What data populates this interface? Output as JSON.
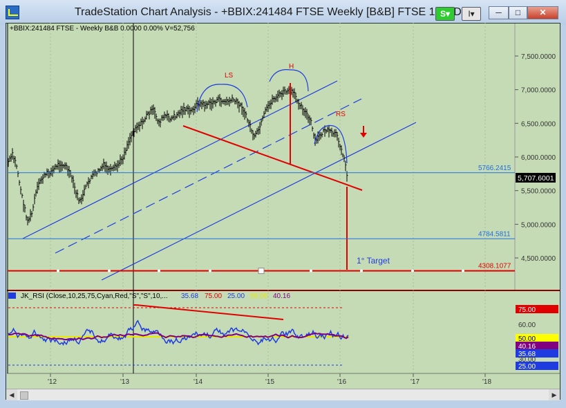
{
  "window": {
    "title": "TradeStation Chart Analysis - +BBIX:241484 FTSE Weekly [B&B] FTSE 100 IDX",
    "s_button": "S",
    "s_dropdown": "▾",
    "i_button": "I",
    "i_dropdown": "▾",
    "minimize": "─",
    "maximize": "□",
    "close": "✕"
  },
  "price_panel": {
    "header": "+BBIX:241484 FTSE - Weekly  B&B  0.0000  0.00%  V=52,756",
    "yticks": [
      "7,500.0000",
      "7,000.0000",
      "6,500.0000",
      "6,000.0000",
      "5,500.0000",
      "5,000.0000",
      "4,500.0000"
    ],
    "ytick_values": [
      7500,
      7000,
      6500,
      6000,
      5500,
      5000,
      4500
    ],
    "levels": [
      {
        "label": "5766.2415",
        "value": 5766.2415,
        "color": "#1e6ee0"
      },
      {
        "label": "4784.5811",
        "value": 4784.5811,
        "color": "#1e6ee0"
      },
      {
        "label": "4308.1077",
        "value": 4308.1077,
        "color": "#e00000"
      }
    ],
    "last_price": "5,707.6001",
    "last_price_value": 5707.6001,
    "annotations": {
      "ls": "LS",
      "h": "H",
      "rs": "RS",
      "target": "1° Target"
    },
    "colors": {
      "bg": "#c5dbb5",
      "bars": "#000000",
      "channel": "#1e3ce0",
      "neckline": "#e00000"
    }
  },
  "rsi_panel": {
    "header": "JK_RSI (Close,10,25,75,Cyan,Red,\"S\",\"S\",10,...",
    "header_icon": "indicator-icon",
    "values": [
      {
        "text": "35.68",
        "color": "#1e3ce0"
      },
      {
        "text": "75.00",
        "color": "#e00000"
      },
      {
        "text": "25.00",
        "color": "#1e3ce0"
      },
      {
        "text": "50.00",
        "color": "#e8e800"
      },
      {
        "text": "40.16",
        "color": "#800080"
      }
    ],
    "right_labels": [
      {
        "text": "75.00",
        "bg": "#e00000",
        "fg": "#ffffff"
      },
      {
        "text": "60.00",
        "bg": "",
        "fg": "#333333"
      },
      {
        "text": "50.00",
        "bg": "#ffff00",
        "fg": "#000000"
      },
      {
        "text": "40.16",
        "bg": "#800080",
        "fg": "#ffffff"
      },
      {
        "text": "35.68",
        "bg": "#1e3ce0",
        "fg": "#ffffff"
      },
      {
        "text": "30.00",
        "bg": "",
        "fg": "#333333"
      },
      {
        "text": "25.00",
        "bg": "#1e3ce0",
        "fg": "#ffffff"
      }
    ]
  },
  "xaxis": {
    "ticks": [
      "'12",
      "'13",
      "'14",
      "'15",
      "'16",
      "'17",
      "'18"
    ]
  },
  "scrollbar": {
    "left": "◀",
    "right": "▶"
  }
}
